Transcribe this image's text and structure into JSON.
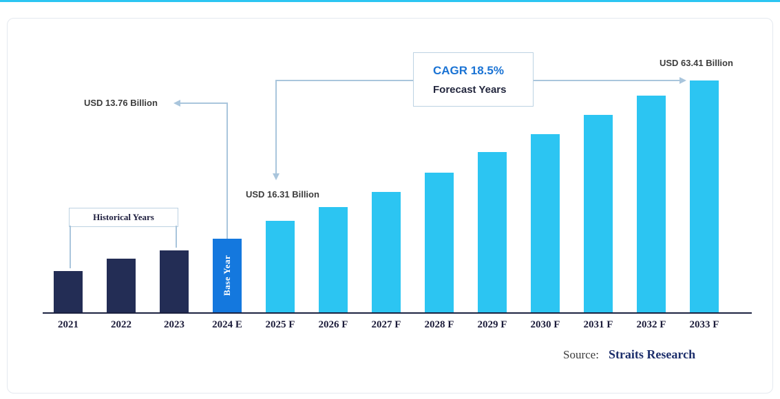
{
  "page": {
    "top_accent_color": "#2cc5f2"
  },
  "annotations": {
    "historical_label": "Historical Years",
    "base_year_value": "USD 13.76 Billion",
    "forecast_start_value": "USD 16.31 Billion",
    "forecast_end_value": "USD 63.41 Billion",
    "cagr_label": "CAGR 18.5%",
    "forecast_years_label": "Forecast Years"
  },
  "source": {
    "prefix": "Source:",
    "name": "Straits Research"
  },
  "chart_data": {
    "type": "bar",
    "title": "",
    "xlabel": "",
    "ylabel": "",
    "unit": "USD Billion",
    "grid": false,
    "legend": false,
    "categories": [
      "2021",
      "2022",
      "2023",
      "2024 E",
      "2025 F",
      "2026 F",
      "2027 F",
      "2028 F",
      "2029 F",
      "2030 F",
      "2031 F",
      "2032 F",
      "2033 F"
    ],
    "bar_height_fraction": [
      0.178,
      0.231,
      0.267,
      0.317,
      0.394,
      0.454,
      0.519,
      0.602,
      0.691,
      0.768,
      0.851,
      0.934,
      1.0
    ],
    "labeled_points": [
      {
        "category": "2024 E",
        "label": "USD 13.76 Billion",
        "value": 13.76
      },
      {
        "category": "2025 F",
        "label": "USD 16.31 Billion",
        "value": 16.31
      },
      {
        "category": "2033 F",
        "label": "USD 63.41 Billion",
        "value": 63.41
      }
    ],
    "cagr_percent": 18.5,
    "groups": {
      "historical": {
        "indices": [
          0,
          1,
          2
        ],
        "color": "#232d55",
        "label": "Historical Years"
      },
      "base": {
        "indices": [
          3
        ],
        "color": "#1478de",
        "bar_text": "Base Year"
      },
      "forecast": {
        "indices": [
          4,
          5,
          6,
          7,
          8,
          9,
          10,
          11,
          12
        ],
        "color": "#2cc5f2",
        "label": "Forecast Years"
      }
    }
  }
}
